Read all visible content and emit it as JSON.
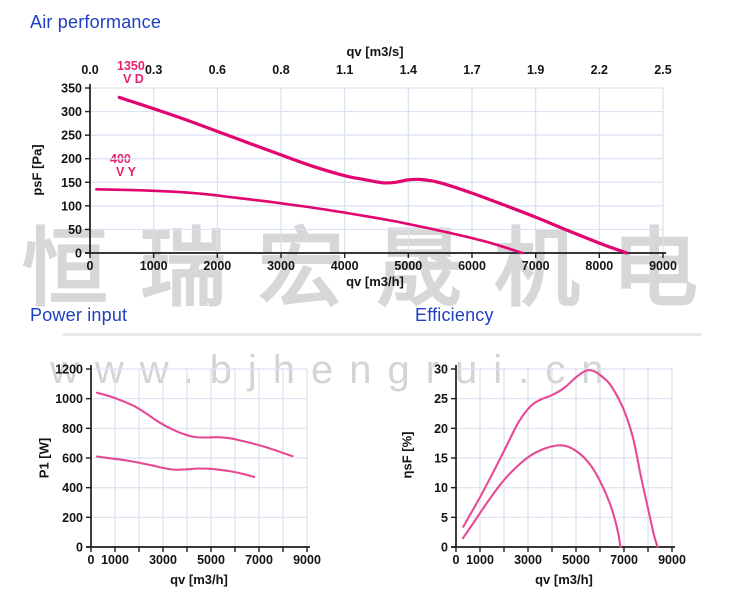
{
  "page": {
    "air_title": "Air performance",
    "power_title": "Power input",
    "efficiency_title": "Efficiency"
  },
  "watermark": {
    "brand_cn": "恒瑞宏晟机电",
    "url": "www.bjhengrui.cn"
  },
  "colors": {
    "title_blue": "#1e3fc2",
    "curve_pink": "#e20570",
    "curve_pink_light": "#e74a95",
    "grid": "#d9e2f0",
    "axis": "#1c1c1c",
    "watermark_gray": "#d7d7d7"
  },
  "chart_data": [
    {
      "id": "air",
      "type": "line",
      "title": "Air performance",
      "xlabel": "qv [m3/h]",
      "xlabel_top": "qv [m3/s]",
      "ylabel": "psF [Pa]",
      "xlim": [
        0,
        9000
      ],
      "ylim": [
        0,
        350
      ],
      "grid": true,
      "x_ticks": [
        0,
        1000,
        2000,
        3000,
        4000,
        5000,
        6000,
        7000,
        8000,
        9000
      ],
      "x_tick_labels": [
        "0",
        "1000",
        "2000",
        "3000",
        "4000",
        "5000",
        "6000",
        "7000",
        "8000",
        "9000"
      ],
      "x_tick_labels_top": [
        "0.0",
        "0.3",
        "0.6",
        "0.8",
        "1.1",
        "1.4",
        "1.7",
        "1.9",
        "2.2",
        "2.5"
      ],
      "y_ticks": [
        0,
        50,
        100,
        150,
        200,
        250,
        300,
        350
      ],
      "series": [
        {
          "name": "1350 V D",
          "label": [
            "1350",
            "V D"
          ],
          "color": "#e20570",
          "width": 3.2,
          "points": [
            [
              460,
              330
            ],
            [
              1000,
              306
            ],
            [
              1500,
              283
            ],
            [
              2000,
              258
            ],
            [
              2500,
              233
            ],
            [
              3000,
              208
            ],
            [
              3500,
              184
            ],
            [
              4000,
              164
            ],
            [
              4300,
              156
            ],
            [
              4600,
              149
            ],
            [
              4800,
              150
            ],
            [
              5000,
              155
            ],
            [
              5200,
              156
            ],
            [
              5500,
              149
            ],
            [
              6000,
              127
            ],
            [
              6500,
              102
            ],
            [
              7000,
              76
            ],
            [
              7500,
              48
            ],
            [
              8000,
              21
            ],
            [
              8430,
              0
            ]
          ]
        },
        {
          "name": "400 V Y",
          "label": [
            "400",
            "V Y"
          ],
          "color": "#e20570",
          "width": 2.6,
          "points": [
            [
              100,
              135
            ],
            [
              800,
              133
            ],
            [
              1300,
              130
            ],
            [
              1800,
              125
            ],
            [
              2300,
              117
            ],
            [
              2800,
              109
            ],
            [
              3300,
              100
            ],
            [
              3800,
              90
            ],
            [
              4300,
              79
            ],
            [
              4800,
              67
            ],
            [
              5300,
              53
            ],
            [
              5800,
              38
            ],
            [
              6300,
              21
            ],
            [
              6790,
              0
            ]
          ]
        }
      ]
    },
    {
      "id": "power",
      "type": "line",
      "title": "Power input",
      "xlabel": "qv [m3/h]",
      "ylabel": "P1 [W]",
      "xlim": [
        0,
        9000
      ],
      "ylim": [
        0,
        1200
      ],
      "grid": true,
      "x_ticks": [
        0,
        1000,
        2000,
        3000,
        4000,
        5000,
        6000,
        7000,
        8000,
        9000
      ],
      "x_tick_labels": [
        "0",
        "1000",
        "",
        "3000",
        "",
        "5000",
        "",
        "7000",
        "",
        "9000"
      ],
      "y_ticks": [
        0,
        200,
        400,
        600,
        800,
        1000,
        1200
      ],
      "series": [
        {
          "name": "1350 V D",
          "color": "#e74a95",
          "width": 2.1,
          "points": [
            [
              250,
              1040
            ],
            [
              800,
              1015
            ],
            [
              1300,
              985
            ],
            [
              1800,
              950
            ],
            [
              2300,
              900
            ],
            [
              2800,
              845
            ],
            [
              3300,
              800
            ],
            [
              3800,
              765
            ],
            [
              4300,
              742
            ],
            [
              4800,
              738
            ],
            [
              5300,
              740
            ],
            [
              5800,
              733
            ],
            [
              6300,
              715
            ],
            [
              6800,
              695
            ],
            [
              7300,
              672
            ],
            [
              7800,
              645
            ],
            [
              8400,
              612
            ]
          ]
        },
        {
          "name": "400 V Y",
          "color": "#e74a95",
          "width": 2.1,
          "points": [
            [
              250,
              610
            ],
            [
              800,
              598
            ],
            [
              1400,
              585
            ],
            [
              2000,
              568
            ],
            [
              2600,
              548
            ],
            [
              3100,
              530
            ],
            [
              3500,
              521
            ],
            [
              4000,
              524
            ],
            [
              4500,
              529
            ],
            [
              5000,
              527
            ],
            [
              5400,
              520
            ],
            [
              5900,
              508
            ],
            [
              6400,
              490
            ],
            [
              6800,
              472
            ]
          ]
        }
      ]
    },
    {
      "id": "efficiency",
      "type": "line",
      "title": "Efficiency",
      "xlabel": "qv [m3/h]",
      "ylabel": "ηsF [%]",
      "xlim": [
        0,
        9000
      ],
      "ylim": [
        0,
        30
      ],
      "grid": true,
      "x_ticks": [
        0,
        1000,
        2000,
        3000,
        4000,
        5000,
        6000,
        7000,
        8000,
        9000
      ],
      "x_tick_labels": [
        "0",
        "1000",
        "",
        "3000",
        "",
        "5000",
        "",
        "7000",
        "",
        "9000"
      ],
      "y_ticks": [
        0,
        5,
        10,
        15,
        20,
        25,
        30
      ],
      "series": [
        {
          "name": "1350 V D",
          "color": "#e74a95",
          "width": 2.1,
          "points": [
            [
              300,
              3.4
            ],
            [
              1000,
              8.4
            ],
            [
              1600,
              13
            ],
            [
              2100,
              17
            ],
            [
              2600,
              21
            ],
            [
              3100,
              23.7
            ],
            [
              3500,
              24.8
            ],
            [
              4000,
              25.6
            ],
            [
              4500,
              26.8
            ],
            [
              5000,
              28.6
            ],
            [
              5400,
              29.7
            ],
            [
              5700,
              29.7
            ],
            [
              6000,
              29
            ],
            [
              6400,
              27.5
            ],
            [
              6800,
              24.8
            ],
            [
              7100,
              22
            ],
            [
              7400,
              18
            ],
            [
              7700,
              12
            ],
            [
              8000,
              6.5
            ],
            [
              8250,
              2
            ],
            [
              8400,
              0
            ]
          ]
        },
        {
          "name": "400 V Y",
          "color": "#e74a95",
          "width": 2.1,
          "points": [
            [
              290,
              1.5
            ],
            [
              800,
              4.5
            ],
            [
              1300,
              7.5
            ],
            [
              1900,
              10.8
            ],
            [
              2500,
              13.4
            ],
            [
              3100,
              15.4
            ],
            [
              3700,
              16.6
            ],
            [
              4200,
              17.1
            ],
            [
              4600,
              17
            ],
            [
              5000,
              16.2
            ],
            [
              5400,
              14.8
            ],
            [
              5800,
              12.6
            ],
            [
              6200,
              9.4
            ],
            [
              6500,
              6.3
            ],
            [
              6750,
              2.5
            ],
            [
              6850,
              0
            ]
          ]
        }
      ]
    }
  ]
}
